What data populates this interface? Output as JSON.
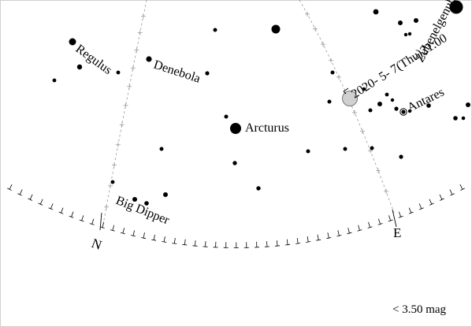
{
  "chart": {
    "background": "#ffffff",
    "star_color": "#000000",
    "grid_color": "#9a9a9a",
    "horizon_color": "#000000",
    "planet_fill": "#d0d0d0",
    "magnitude_limit_label": "< 3.50 mag",
    "labels": {
      "regulus": "Regulus",
      "denebola": "Denebola",
      "arcturus": "Arcturus",
      "antares": "Antares",
      "big_dipper": "Big Dipper",
      "zubenelgenubi": "Zubenelgenubi",
      "date_marker": "2020- 5- 7(Thu)21:00",
      "north": "N",
      "east": "E"
    }
  }
}
